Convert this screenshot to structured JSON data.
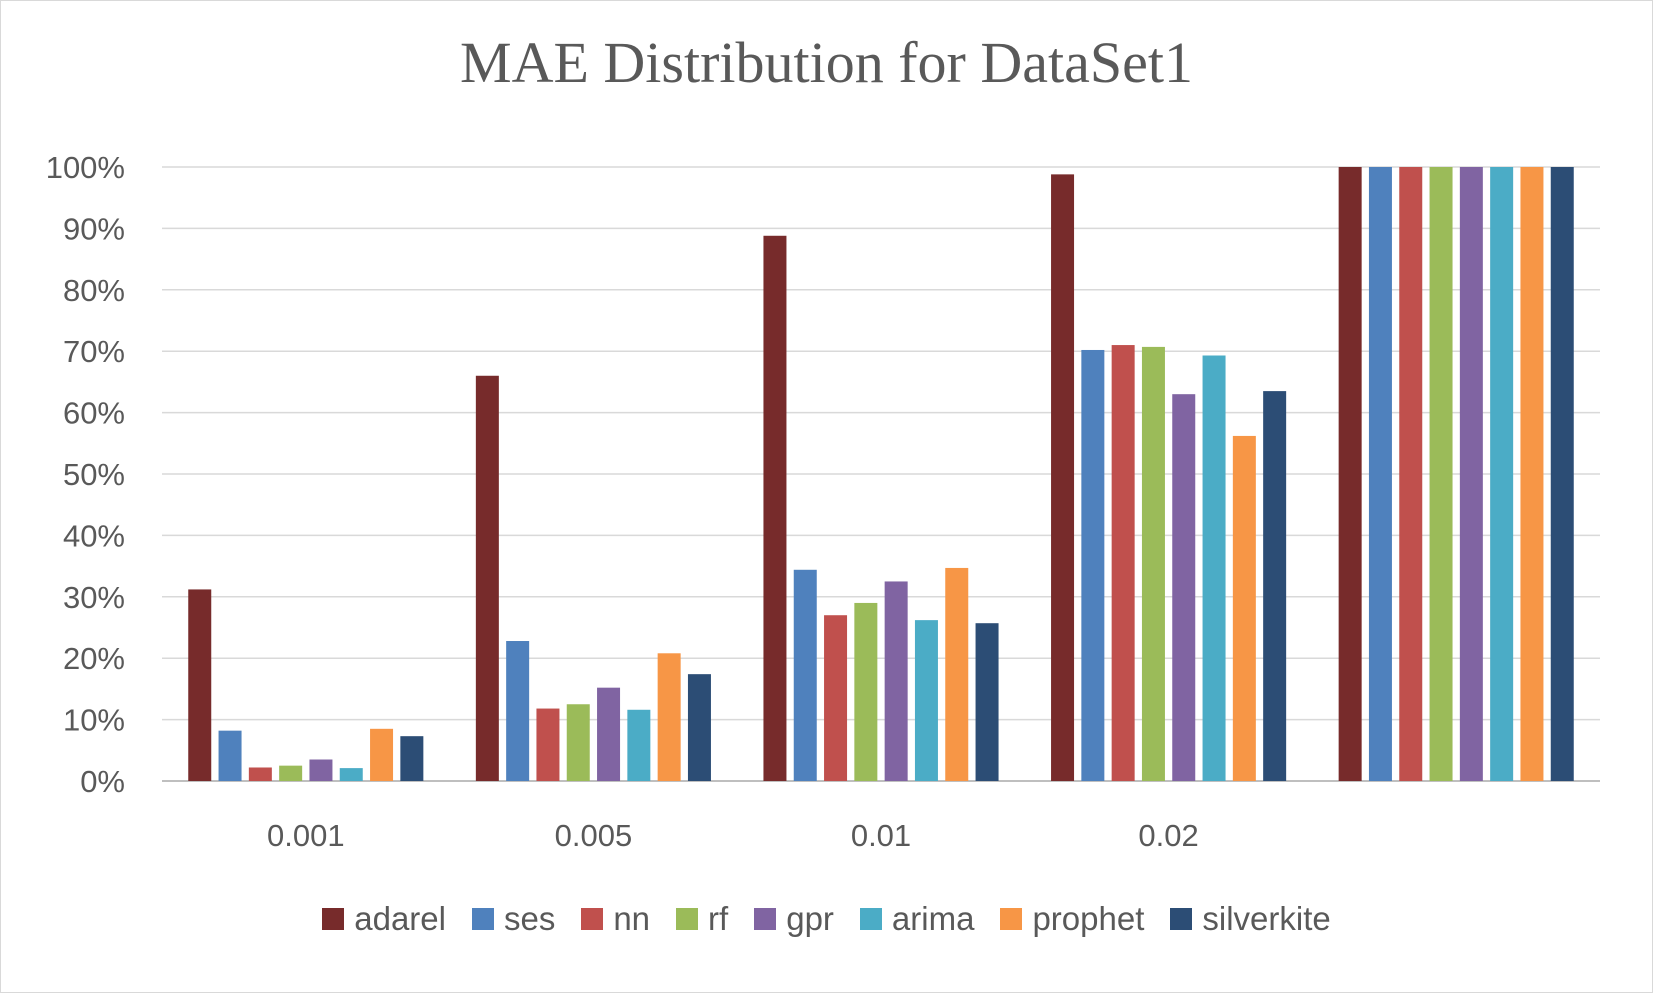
{
  "chart_data": {
    "type": "bar",
    "title": "MAE Distribution for DataSet1",
    "xlabel": "",
    "ylabel": "",
    "categories": [
      "0.001",
      "0.005",
      "0.01",
      "0.02",
      ""
    ],
    "ylim": [
      0,
      100
    ],
    "yticks": [
      "0%",
      "10%",
      "20%",
      "30%",
      "40%",
      "50%",
      "60%",
      "70%",
      "80%",
      "90%",
      "100%"
    ],
    "grid": true,
    "legend_position": "bottom",
    "series": [
      {
        "name": "adarel",
        "color": "#772B2B",
        "values": [
          31.2,
          66.0,
          88.8,
          98.8,
          100
        ]
      },
      {
        "name": "ses",
        "color": "#4F81BD",
        "values": [
          8.2,
          22.8,
          34.4,
          70.2,
          100
        ]
      },
      {
        "name": "nn",
        "color": "#C0504D",
        "values": [
          2.2,
          11.8,
          27.0,
          71.0,
          100
        ]
      },
      {
        "name": "rf",
        "color": "#9BBB59",
        "values": [
          2.5,
          12.5,
          29.0,
          70.7,
          100
        ]
      },
      {
        "name": "gpr",
        "color": "#8064A2",
        "values": [
          3.5,
          15.2,
          32.5,
          63.0,
          100
        ]
      },
      {
        "name": "arima",
        "color": "#4BACC6",
        "values": [
          2.1,
          11.6,
          26.2,
          69.3,
          100
        ]
      },
      {
        "name": "prophet",
        "color": "#F79646",
        "values": [
          8.5,
          20.8,
          34.7,
          56.2,
          100
        ]
      },
      {
        "name": "silverkite",
        "color": "#2C4D75",
        "values": [
          7.3,
          17.4,
          25.7,
          63.5,
          100
        ]
      }
    ]
  }
}
